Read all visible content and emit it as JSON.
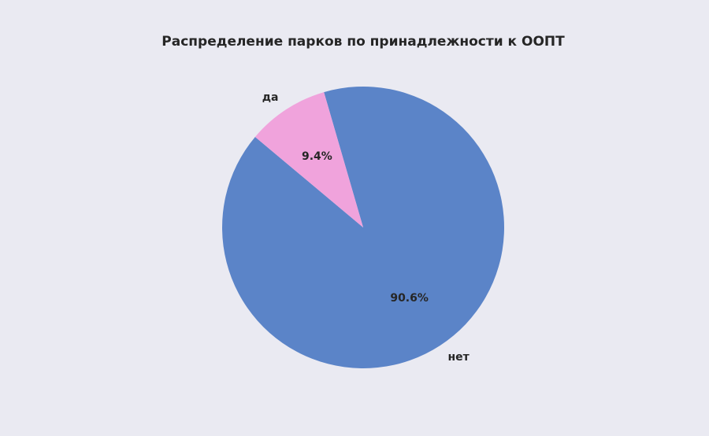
{
  "chart_data": {
    "type": "pie",
    "title": "Распределение парков по принадлежности к ООПТ",
    "categories": [
      "нет",
      "да"
    ],
    "values": [
      90.6,
      9.4
    ],
    "value_labels": [
      "90.6%",
      "9.4%"
    ],
    "colors": [
      "#5b84c8",
      "#f0a3dc"
    ]
  }
}
